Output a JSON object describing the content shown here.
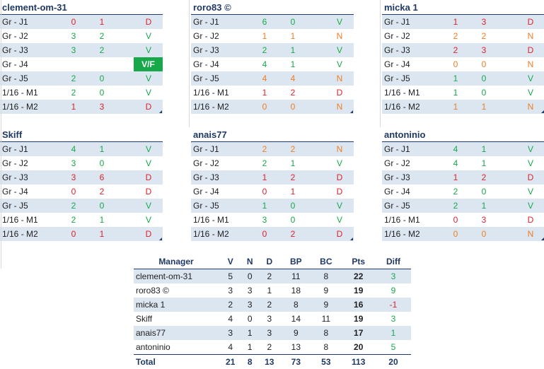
{
  "colors": {
    "header": "#1f3864",
    "shade": "#dce6f1",
    "win": "#17a84a",
    "loss": "#e0202a",
    "draw": "#ef7d22"
  },
  "panels": [
    {
      "name": "clement-om-31",
      "rows": [
        {
          "label": "Gr - J1",
          "a": "0",
          "b": "1",
          "r": "D"
        },
        {
          "label": "Gr - J2",
          "a": "3",
          "b": "2",
          "r": "V"
        },
        {
          "label": "Gr - J3",
          "a": "3",
          "b": "2",
          "r": "V"
        },
        {
          "label": "Gr - J4",
          "a": "",
          "b": "",
          "r": "V/F"
        },
        {
          "label": "Gr - J5",
          "a": "2",
          "b": "0",
          "r": "V"
        },
        {
          "label": "1/16 - M1",
          "a": "2",
          "b": "0",
          "r": "V"
        },
        {
          "label": "1/16 - M2",
          "a": "1",
          "b": "3",
          "r": "D"
        }
      ]
    },
    {
      "name": "roro83 ©",
      "rows": [
        {
          "label": "Gr - J1",
          "a": "6",
          "b": "0",
          "r": "V"
        },
        {
          "label": "Gr - J2",
          "a": "1",
          "b": "1",
          "r": "N"
        },
        {
          "label": "Gr - J3",
          "a": "2",
          "b": "1",
          "r": "V"
        },
        {
          "label": "Gr - J4",
          "a": "4",
          "b": "1",
          "r": "V"
        },
        {
          "label": "Gr - J5",
          "a": "4",
          "b": "4",
          "r": "N"
        },
        {
          "label": "1/16 - M1",
          "a": "1",
          "b": "2",
          "r": "D"
        },
        {
          "label": "1/16 - M2",
          "a": "0",
          "b": "0",
          "r": "N"
        }
      ]
    },
    {
      "name": "micka 1",
      "rows": [
        {
          "label": "Gr - J1",
          "a": "1",
          "b": "3",
          "r": "D"
        },
        {
          "label": "Gr - J2",
          "a": "2",
          "b": "2",
          "r": "N"
        },
        {
          "label": "Gr - J3",
          "a": "2",
          "b": "3",
          "r": "D"
        },
        {
          "label": "Gr - J4",
          "a": "0",
          "b": "0",
          "r": "N"
        },
        {
          "label": "Gr - J5",
          "a": "1",
          "b": "0",
          "r": "V"
        },
        {
          "label": "1/16 - M1",
          "a": "1",
          "b": "0",
          "r": "V"
        },
        {
          "label": "1/16 - M2",
          "a": "1",
          "b": "1",
          "r": "N"
        }
      ]
    },
    {
      "name": "Skiff",
      "rows": [
        {
          "label": "Gr - J1",
          "a": "4",
          "b": "1",
          "r": "V"
        },
        {
          "label": "Gr - J2",
          "a": "3",
          "b": "0",
          "r": "V"
        },
        {
          "label": "Gr - J3",
          "a": "3",
          "b": "6",
          "r": "D"
        },
        {
          "label": "Gr - J4",
          "a": "0",
          "b": "2",
          "r": "D"
        },
        {
          "label": "Gr - J5",
          "a": "2",
          "b": "0",
          "r": "V"
        },
        {
          "label": "1/16 - M1",
          "a": "2",
          "b": "1",
          "r": "V"
        },
        {
          "label": "1/16 - M2",
          "a": "0",
          "b": "1",
          "r": "D"
        }
      ]
    },
    {
      "name": "anais77",
      "rows": [
        {
          "label": "Gr - J1",
          "a": "2",
          "b": "2",
          "r": "N"
        },
        {
          "label": "Gr - J2",
          "a": "2",
          "b": "1",
          "r": "V"
        },
        {
          "label": "Gr - J3",
          "a": "1",
          "b": "2",
          "r": "D"
        },
        {
          "label": "Gr - J4",
          "a": "0",
          "b": "1",
          "r": "D"
        },
        {
          "label": "Gr - J5",
          "a": "1",
          "b": "0",
          "r": "V"
        },
        {
          "label": "1/16 - M1",
          "a": "3",
          "b": "0",
          "r": "V"
        },
        {
          "label": "1/16 - M2",
          "a": "0",
          "b": "2",
          "r": "D"
        }
      ]
    },
    {
      "name": "antoninio",
      "rows": [
        {
          "label": "Gr - J1",
          "a": "4",
          "b": "1",
          "r": "V"
        },
        {
          "label": "Gr - J2",
          "a": "4",
          "b": "1",
          "r": "V"
        },
        {
          "label": "Gr - J3",
          "a": "1",
          "b": "2",
          "r": "D"
        },
        {
          "label": "Gr - J4",
          "a": "2",
          "b": "0",
          "r": "V"
        },
        {
          "label": "Gr - J5",
          "a": "2",
          "b": "1",
          "r": "V"
        },
        {
          "label": "1/16 - M1",
          "a": "0",
          "b": "3",
          "r": "D"
        },
        {
          "label": "1/16 - M2",
          "a": "0",
          "b": "0",
          "r": "N"
        }
      ]
    }
  ],
  "summary": {
    "headers": [
      "Manager",
      "V",
      "N",
      "D",
      "BP",
      "BC",
      "Pts",
      "Diff"
    ],
    "rows": [
      {
        "manager": "clement-om-31",
        "v": "5",
        "n": "0",
        "d": "2",
        "bp": "11",
        "bc": "8",
        "pts": "22",
        "diff": "3"
      },
      {
        "manager": "roro83 ©",
        "v": "3",
        "n": "3",
        "d": "1",
        "bp": "18",
        "bc": "9",
        "pts": "19",
        "diff": "9"
      },
      {
        "manager": "micka 1",
        "v": "2",
        "n": "3",
        "d": "2",
        "bp": "8",
        "bc": "9",
        "pts": "16",
        "diff": "-1"
      },
      {
        "manager": "Skiff",
        "v": "4",
        "n": "0",
        "d": "3",
        "bp": "14",
        "bc": "11",
        "pts": "19",
        "diff": "3"
      },
      {
        "manager": "anais77",
        "v": "3",
        "n": "1",
        "d": "3",
        "bp": "9",
        "bc": "8",
        "pts": "17",
        "diff": "1"
      },
      {
        "manager": "antoninio",
        "v": "4",
        "n": "1",
        "d": "2",
        "bp": "13",
        "bc": "8",
        "pts": "20",
        "diff": "5"
      }
    ],
    "total": {
      "manager": "Total",
      "v": "21",
      "n": "8",
      "d": "13",
      "bp": "73",
      "bc": "53",
      "pts": "113",
      "diff": "20"
    }
  }
}
